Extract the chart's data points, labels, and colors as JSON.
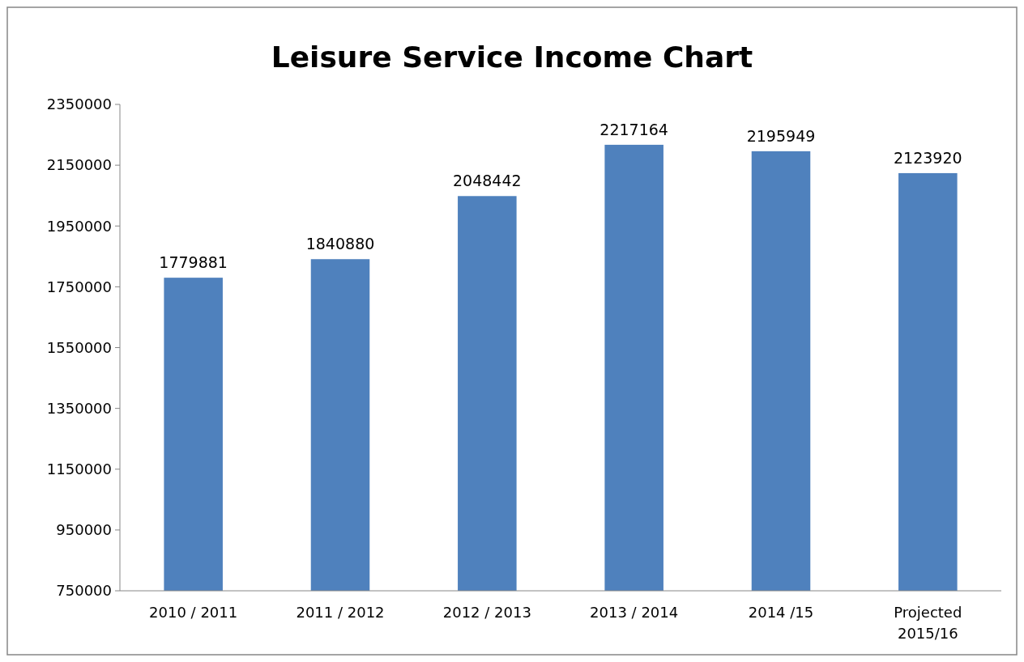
{
  "chart_data": {
    "type": "bar",
    "title": "Leisure Service Income Chart",
    "categories": [
      "2010 / 2011",
      "2011 / 2012",
      "2012 / 2013",
      "2013 / 2014",
      "2014 /15",
      "Projected 2015/16"
    ],
    "values": [
      1779881,
      1840880,
      2048442,
      2217164,
      2195949,
      2123920
    ],
    "color": "#4f81bd",
    "ylim": [
      750000,
      2350000
    ],
    "yticks": [
      750000,
      950000,
      1150000,
      1350000,
      1550000,
      1750000,
      1950000,
      2150000,
      2350000
    ],
    "grid": false,
    "data_labels": true
  }
}
